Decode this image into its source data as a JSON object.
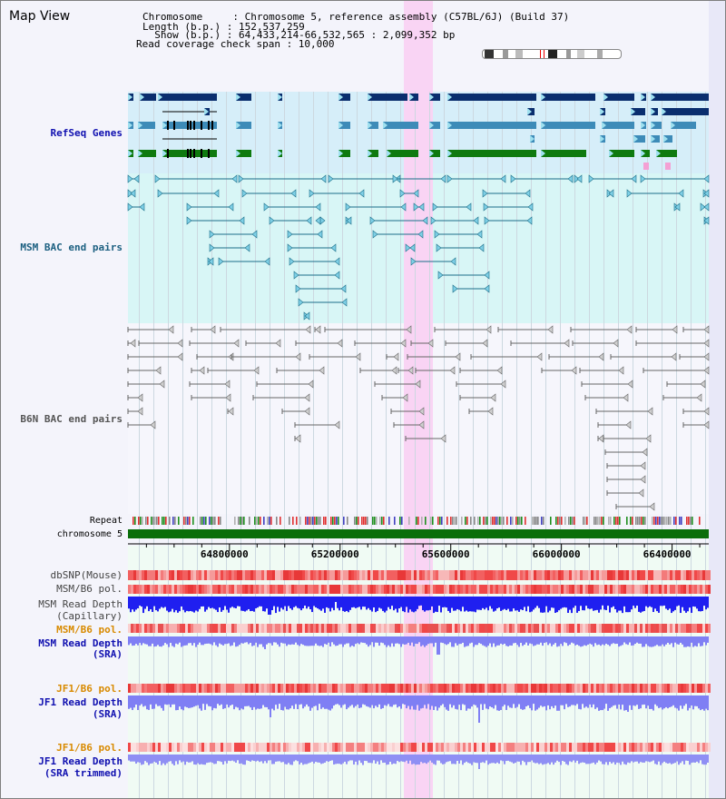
{
  "header": {
    "title": "Map View",
    "info_lines": [
      "Chromosome     : Chromosome 5, reference assembly (C57BL/6J) (Build 37)",
      "Length (b.p.) : 152,537,259",
      "  Show (b.p.) : 64,433,214-66,532,565 : 2,099,352 bp",
      "Read coverage check span : 10,000"
    ]
  },
  "tracks": {
    "refseq": "RefSeq Genes",
    "msm_bac": "MSM BAC end pairs",
    "b6n_bac": "B6N BAC end pairs",
    "repeat": "Repeat",
    "chromosome": "chromosome 5",
    "dbsnp": "dbSNP(Mouse)",
    "msm_pol": "MSM/B6 pol.",
    "msm_depth_cap_1": "MSM Read Depth",
    "msm_depth_cap_2": "(Capillary)",
    "msm_pol_2": "MSM/B6 pol.",
    "msm_depth_sra_1": "MSM Read Depth",
    "msm_depth_sra_2": "(SRA)",
    "jf1_pol": "JF1/B6 pol.",
    "jf1_depth_1": "JF1 Read Depth",
    "jf1_depth_2": "(SRA)",
    "jf1_pol_2": "JF1/B6 pol.",
    "jf1_trim_1": "JF1 Read Depth",
    "jf1_trim_2": "(SRA trimmed)"
  },
  "axis": {
    "ticks": [
      "64800000",
      "65200000",
      "65600000",
      "66000000",
      "66400000"
    ],
    "tick_values": [
      64800000,
      65200000,
      65600000,
      66000000,
      66400000
    ],
    "view_start": 64433214,
    "view_end": 66532565
  },
  "colors": {
    "refseq_bg": "#d6eef9",
    "msm_bg": "#d8f6f6",
    "gene_dark": "#0a2e6e",
    "gene_mid": "#3d8bb8",
    "gene_green": "#0f7a0f",
    "msm_line": "#1b6f8a",
    "b6n_line": "#666666",
    "highlight": "#f9d4f4",
    "chrom_bar": "#0a6e0a",
    "blue_depth": "#1f1ff0",
    "light_depth": "#7f7ff4"
  }
}
